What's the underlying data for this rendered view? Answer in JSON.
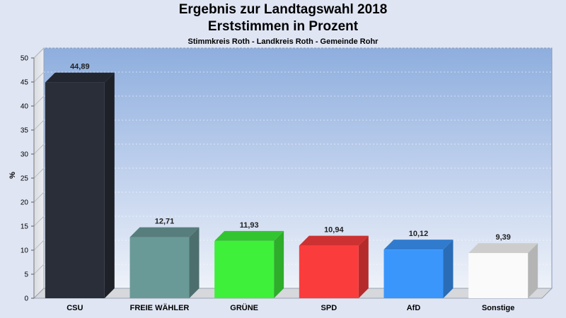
{
  "chart_data": {
    "type": "bar",
    "title": "Ergebnis zur Landtagswahl 2018",
    "title2": "Erststimmen in Prozent",
    "subtitle": "Stimmkreis Roth - Landkreis Roth - Gemeinde Rohr",
    "ylabel": "%",
    "ylim": [
      0,
      50
    ],
    "yticks": [
      "0",
      "5",
      "10",
      "15",
      "20",
      "25",
      "30",
      "35",
      "40",
      "45",
      "50"
    ],
    "grid": true,
    "categories": [
      "CSU",
      "FREIE WÄHLER",
      "GRÜNE",
      "SPD",
      "AfD",
      "Sonstige"
    ],
    "values": [
      44.89,
      12.71,
      11.93,
      10.94,
      10.12,
      9.39
    ],
    "value_labels": [
      "44,89",
      "12,71",
      "11,93",
      "10,94",
      "10,12",
      "9,39"
    ],
    "colors": [
      "#2a2e38",
      "#6a9a98",
      "#3ef03a",
      "#fb3c3c",
      "#3a96fb",
      "#fafafa"
    ]
  }
}
